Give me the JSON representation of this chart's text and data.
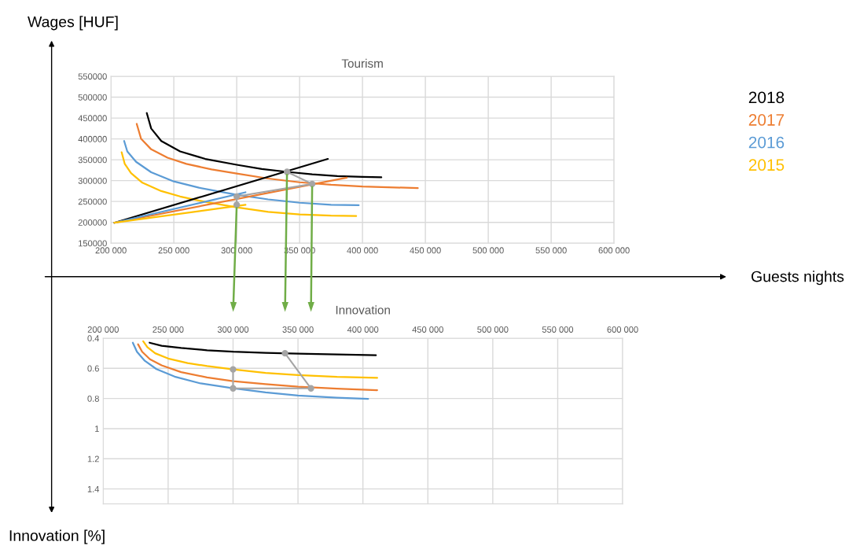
{
  "chart_data": [
    {
      "type": "line",
      "title": "Tourism",
      "grid": true,
      "legend": "right",
      "annotations": [
        "Wages [HUF]",
        "Guests nights"
      ],
      "xlim": [
        200000,
        600000
      ],
      "ylim": [
        150000,
        550000
      ],
      "xticks": [
        {
          "value": 200000,
          "label": "200 000"
        },
        {
          "value": 250000,
          "label": "250 000"
        },
        {
          "value": 300000,
          "label": "300 000"
        },
        {
          "value": 350000,
          "label": "350 000"
        },
        {
          "value": 400000,
          "label": "400 000"
        },
        {
          "value": 450000,
          "label": "450 000"
        },
        {
          "value": 500000,
          "label": "500 000"
        },
        {
          "value": 550000,
          "label": "550 000"
        },
        {
          "value": 600000,
          "label": "600 000"
        }
      ],
      "yticks": [
        150000,
        200000,
        250000,
        300000,
        350000,
        400000,
        450000,
        500000,
        550000
      ],
      "series": [
        {
          "name": "2018",
          "color": "#000000",
          "x": [
            228500,
            232000,
            240000,
            255000,
            275000,
            300000,
            320000,
            340000,
            360000,
            380000,
            400000,
            415000
          ],
          "values": [
            462000,
            425000,
            395000,
            370000,
            352000,
            338000,
            328000,
            321000,
            315000,
            311000,
            309000,
            308000
          ]
        },
        {
          "name": "2017",
          "color": "#ed7d31",
          "x": [
            220500,
            224000,
            232000,
            245000,
            260000,
            280000,
            300000,
            325000,
            350000,
            375000,
            400000,
            444000
          ],
          "values": [
            436000,
            400000,
            375000,
            355000,
            340000,
            327000,
            317000,
            305000,
            296000,
            290000,
            286000,
            282000
          ]
        },
        {
          "name": "2016",
          "color": "#5b9bd5",
          "x": [
            210500,
            213000,
            220000,
            232000,
            250000,
            270000,
            300000,
            325000,
            350000,
            375000,
            397000
          ],
          "values": [
            395000,
            370000,
            345000,
            320000,
            298000,
            283000,
            266000,
            255000,
            247000,
            242000,
            241000
          ]
        },
        {
          "name": "2015",
          "color": "#ffc000",
          "x": [
            208500,
            211000,
            216000,
            225000,
            240000,
            255000,
            275000,
            300000,
            325000,
            350000,
            375000,
            395000
          ],
          "values": [
            368000,
            340000,
            318000,
            295000,
            275000,
            262000,
            249000,
            236000,
            225000,
            219000,
            216000,
            215000
          ]
        },
        {
          "color": "#000000",
          "x": [
            202700,
            372500
          ],
          "values": [
            199000,
            352000
          ]
        },
        {
          "color": "#ed7d31",
          "x": [
            202700,
            387500
          ],
          "values": [
            199000,
            307000
          ]
        },
        {
          "color": "#5b9bd5",
          "x": [
            202700,
            307000
          ],
          "values": [
            199000,
            272000
          ]
        },
        {
          "color": "#ffc000",
          "x": [
            202700,
            307000
          ],
          "values": [
            199000,
            242000
          ]
        },
        {
          "color": "#a5a5a5",
          "marker": "circle",
          "x": [
            300000,
            300000,
            360000,
            340000
          ],
          "values": [
            242000,
            262000,
            292000,
            321000
          ]
        }
      ]
    },
    {
      "type": "line",
      "title": "Innovation",
      "grid": true,
      "annotations": [
        "Innovation [%]"
      ],
      "xlim": [
        200000,
        600000
      ],
      "ylim": [
        1.5,
        0.4
      ],
      "xticks": [
        {
          "value": 200000,
          "label": "200 000"
        },
        {
          "value": 250000,
          "label": "250 000"
        },
        {
          "value": 300000,
          "label": "300 000"
        },
        {
          "value": 350000,
          "label": "350 000"
        },
        {
          "value": 400000,
          "label": "400 000"
        },
        {
          "value": 450000,
          "label": "450 000"
        },
        {
          "value": 500000,
          "label": "500 000"
        },
        {
          "value": 550000,
          "label": "550 000"
        },
        {
          "value": 600000,
          "label": "600 000"
        }
      ],
      "yticks": [
        0.4,
        0.6,
        0.8,
        1,
        1.2,
        1.4,
        {
          "value": 1.5,
          "label": null
        }
      ],
      "series": [
        {
          "color": "#000000",
          "x": [
            235700,
            245000,
            260000,
            280000,
            300000,
            325000,
            350000,
            380000,
            410000
          ],
          "values": [
            0.43,
            0.45,
            0.465,
            0.48,
            0.49,
            0.497,
            0.503,
            0.508,
            0.513
          ]
        },
        {
          "color": "#ed7d31",
          "x": [
            226800,
            230000,
            236000,
            245000,
            260000,
            280000,
            300000,
            325000,
            350000,
            380000,
            411000
          ],
          "values": [
            0.44,
            0.49,
            0.54,
            0.58,
            0.625,
            0.66,
            0.685,
            0.705,
            0.722,
            0.735,
            0.745
          ]
        },
        {
          "color": "#5b9bd5",
          "x": [
            222800,
            226000,
            232000,
            241000,
            255000,
            275000,
            300000,
            325000,
            350000,
            380000,
            404000
          ],
          "values": [
            0.43,
            0.49,
            0.55,
            0.605,
            0.655,
            0.7,
            0.732,
            0.76,
            0.78,
            0.795,
            0.803
          ]
        },
        {
          "color": "#ffc000",
          "x": [
            230800,
            234000,
            240000,
            250000,
            265000,
            280000,
            300000,
            325000,
            350000,
            380000,
            411000
          ],
          "values": [
            0.42,
            0.46,
            0.5,
            0.535,
            0.565,
            0.585,
            0.607,
            0.63,
            0.645,
            0.657,
            0.663
          ]
        },
        {
          "color": "#a5a5a5",
          "marker": "circle",
          "x": [
            300000,
            300000,
            360000,
            340000
          ],
          "values": [
            0.607,
            0.733,
            0.733,
            0.5
          ]
        }
      ]
    }
  ]
}
